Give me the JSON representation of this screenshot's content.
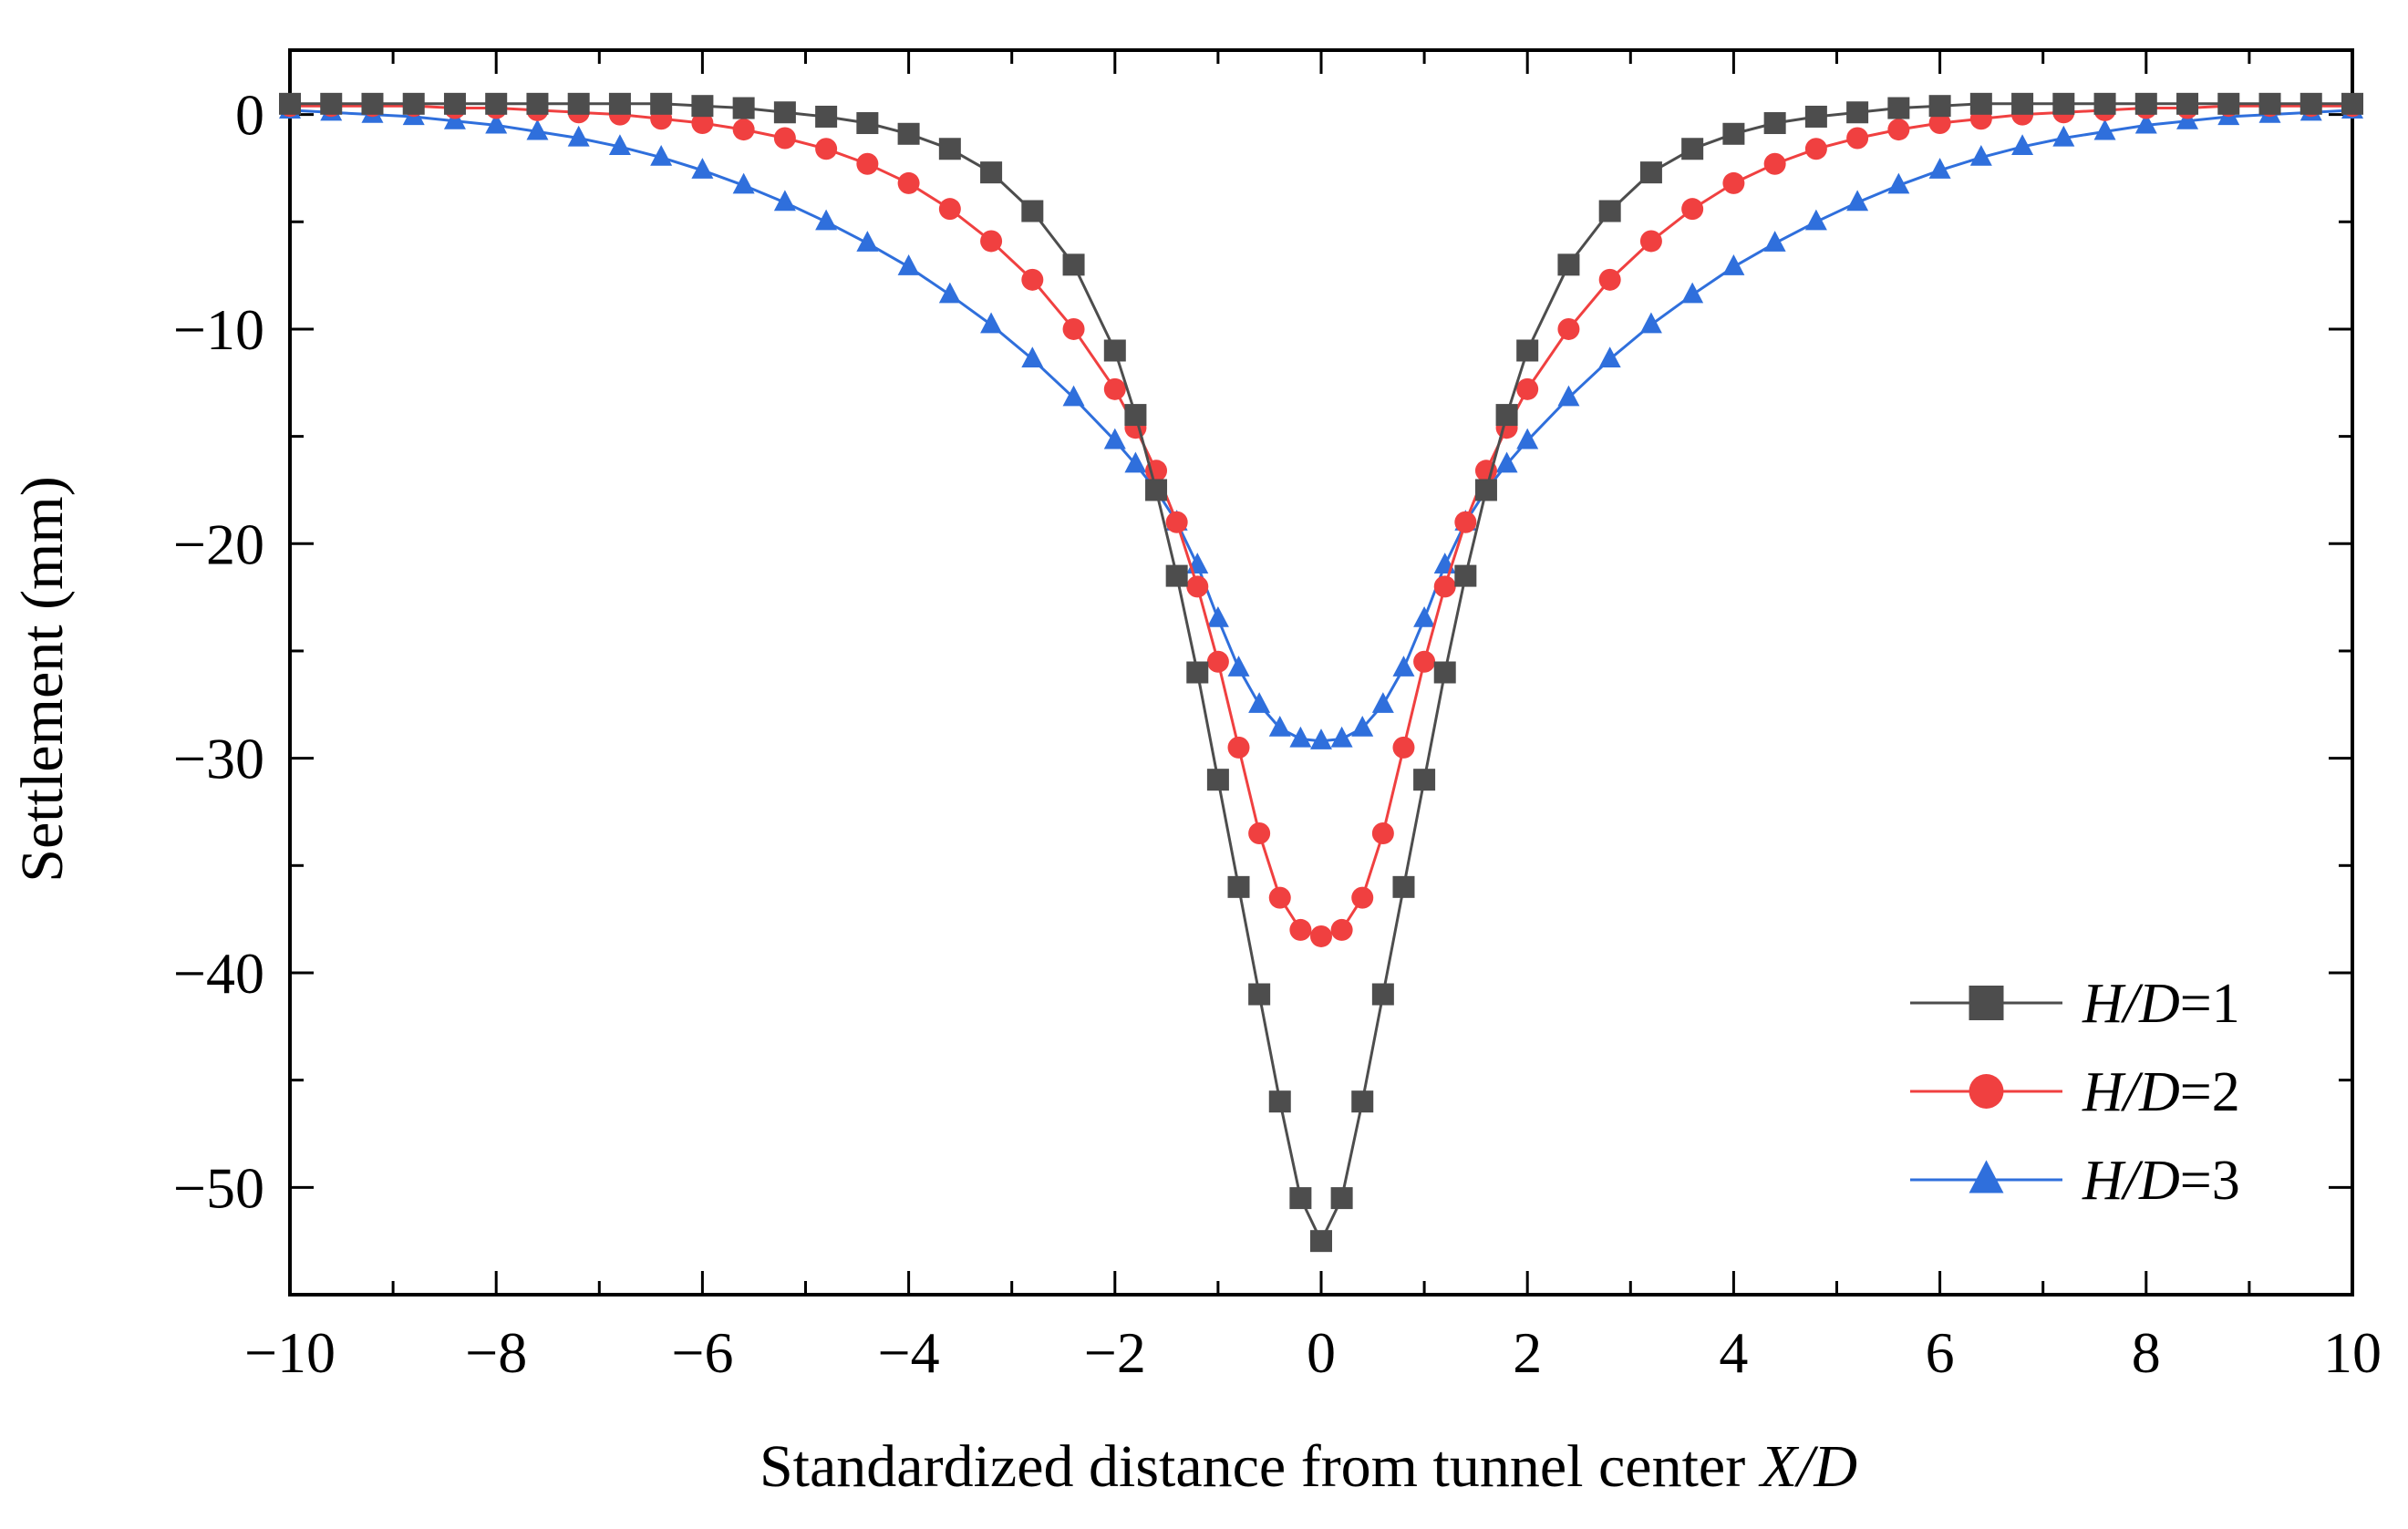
{
  "chart_data": {
    "type": "line",
    "title": "",
    "xlabel": "Standardized distance from tunnel center X/D",
    "xlabel_parts": [
      "Standardized distance from tunnel center ",
      "X",
      "/",
      "D"
    ],
    "ylabel": "Settlement (mm)",
    "xlim": [
      -10,
      10
    ],
    "ylim": [
      -55,
      3
    ],
    "xticks": [
      -10,
      -8,
      -6,
      -4,
      -2,
      0,
      2,
      4,
      6,
      8,
      10
    ],
    "xtick_labels": [
      "−10",
      "−8",
      "−6",
      "−4",
      "−2",
      "0",
      "2",
      "4",
      "6",
      "8",
      "10"
    ],
    "yticks": [
      0,
      -10,
      -20,
      -30,
      -40,
      -50
    ],
    "ytick_labels": [
      "0",
      "−10",
      "−20",
      "−30",
      "−40",
      "−50"
    ],
    "grid": false,
    "legend_position": "bottom-right",
    "x": [
      -10,
      -9.6,
      -9.2,
      -8.8,
      -8.4,
      -8,
      -7.6,
      -7.2,
      -6.8,
      -6.4,
      -6,
      -5.6,
      -5.2,
      -4.8,
      -4.4,
      -4,
      -3.6,
      -3.2,
      -2.8,
      -2.4,
      -2,
      -1.8,
      -1.6,
      -1.4,
      -1.2,
      -1,
      -0.8,
      -0.6,
      -0.4,
      -0.2,
      0,
      0.2,
      0.4,
      0.6,
      0.8,
      1,
      1.2,
      1.4,
      1.6,
      1.8,
      2,
      2.4,
      2.8,
      3.2,
      3.6,
      4,
      4.4,
      4.8,
      5.2,
      5.6,
      6,
      6.4,
      6.8,
      7.2,
      7.6,
      8,
      8.4,
      8.8,
      9.2,
      9.6,
      10
    ],
    "series": [
      {
        "name": "H/D=1",
        "label_parts": [
          "H",
          "/",
          "D",
          "=1"
        ],
        "color": "#4d4d4d",
        "marker": "square",
        "values": [
          0.5,
          0.5,
          0.5,
          0.5,
          0.5,
          0.5,
          0.5,
          0.5,
          0.5,
          0.5,
          0.4,
          0.3,
          0.1,
          -0.1,
          -0.4,
          -0.9,
          -1.6,
          -2.7,
          -4.5,
          -7.0,
          -11.0,
          -14.0,
          -17.5,
          -21.5,
          -26.0,
          -31.0,
          -36.0,
          -41.0,
          -46.0,
          -50.5,
          -52.5,
          -50.5,
          -46.0,
          -41.0,
          -36.0,
          -31.0,
          -26.0,
          -21.5,
          -17.5,
          -14.0,
          -11.0,
          -7.0,
          -4.5,
          -2.7,
          -1.6,
          -0.9,
          -0.4,
          -0.1,
          0.1,
          0.3,
          0.4,
          0.5,
          0.5,
          0.5,
          0.5,
          0.5,
          0.5,
          0.5,
          0.5,
          0.5,
          0.5
        ]
      },
      {
        "name": "H/D=2",
        "label_parts": [
          "H",
          "/",
          "D",
          "=2"
        ],
        "color": "#f04040",
        "marker": "circle",
        "values": [
          0.4,
          0.4,
          0.4,
          0.4,
          0.3,
          0.3,
          0.2,
          0.1,
          0.0,
          -0.2,
          -0.4,
          -0.7,
          -1.1,
          -1.6,
          -2.3,
          -3.2,
          -4.4,
          -5.9,
          -7.7,
          -10.0,
          -12.8,
          -14.6,
          -16.6,
          -19.0,
          -22.0,
          -25.5,
          -29.5,
          -33.5,
          -36.5,
          -38.0,
          -38.3,
          -38.0,
          -36.5,
          -33.5,
          -29.5,
          -25.5,
          -22.0,
          -19.0,
          -16.6,
          -14.6,
          -12.8,
          -10.0,
          -7.7,
          -5.9,
          -4.4,
          -3.2,
          -2.3,
          -1.6,
          -1.1,
          -0.7,
          -0.4,
          -0.2,
          0.0,
          0.1,
          0.2,
          0.3,
          0.3,
          0.4,
          0.4,
          0.4,
          0.4
        ]
      },
      {
        "name": "H/D=3",
        "label_parts": [
          "H",
          "/",
          "D",
          "=3"
        ],
        "color": "#2f6fdc",
        "marker": "triangle",
        "values": [
          0.2,
          0.1,
          0.0,
          -0.1,
          -0.3,
          -0.5,
          -0.8,
          -1.1,
          -1.5,
          -2.0,
          -2.6,
          -3.3,
          -4.1,
          -5.0,
          -6.0,
          -7.1,
          -8.4,
          -9.8,
          -11.4,
          -13.2,
          -15.2,
          -16.3,
          -17.5,
          -19.0,
          -21.0,
          -23.5,
          -25.8,
          -27.5,
          -28.6,
          -29.1,
          -29.2,
          -29.1,
          -28.6,
          -27.5,
          -25.8,
          -23.5,
          -21.0,
          -19.0,
          -17.5,
          -16.3,
          -15.2,
          -13.2,
          -11.4,
          -9.8,
          -8.4,
          -7.1,
          -6.0,
          -5.0,
          -4.1,
          -3.3,
          -2.6,
          -2.0,
          -1.5,
          -1.1,
          -0.8,
          -0.5,
          -0.3,
          -0.1,
          0.0,
          0.1,
          0.2
        ]
      }
    ]
  }
}
